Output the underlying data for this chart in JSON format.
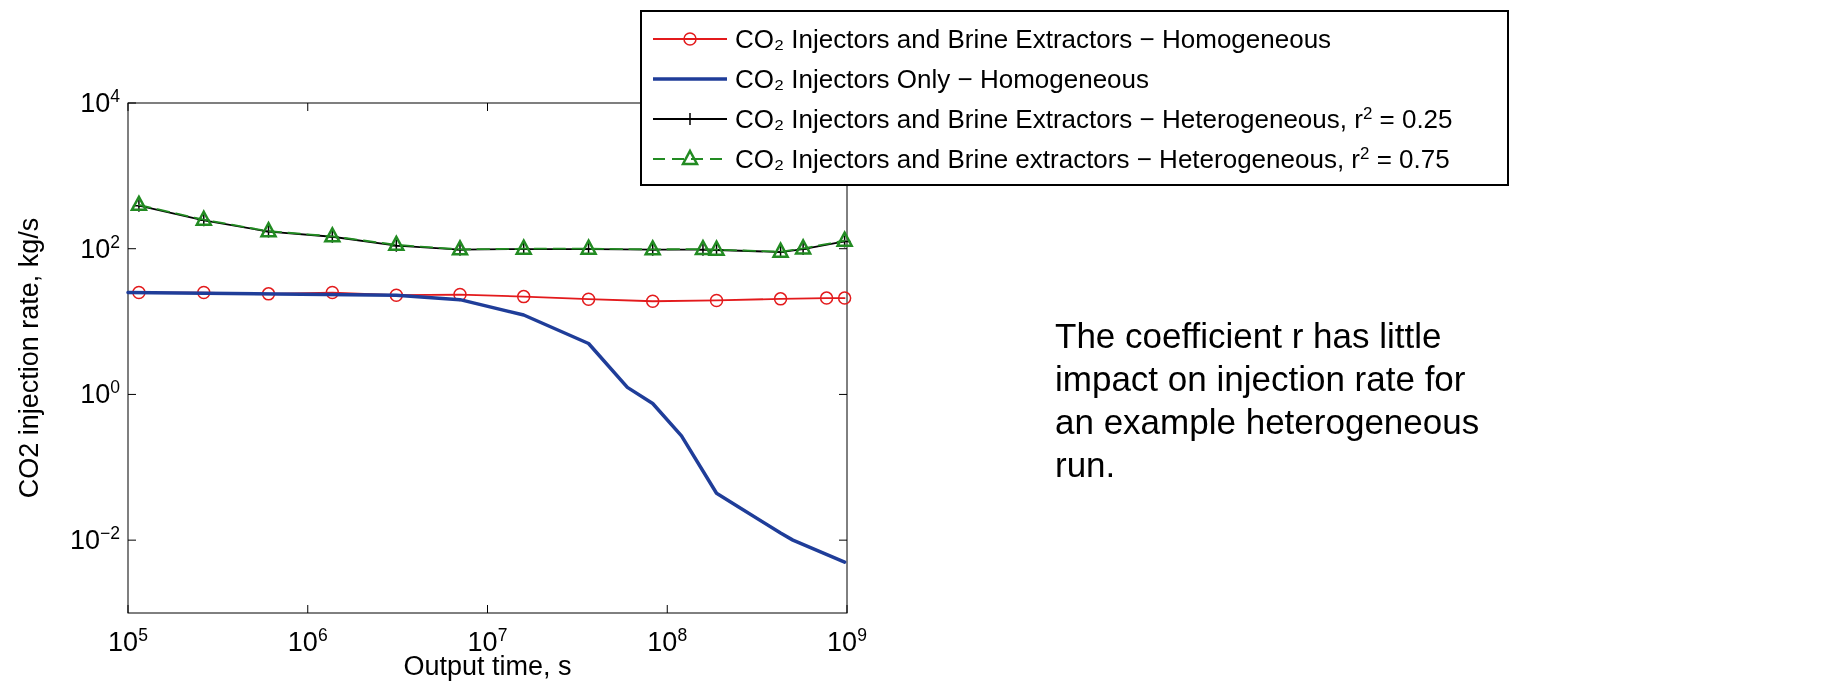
{
  "chart_data": {
    "type": "line",
    "xlabel": "Output time, s",
    "ylabel": "CO2 injection rate, kg/s",
    "log": "xy",
    "xlim": [
      100000,
      1000000000
    ],
    "ylim": [
      0.001,
      10000
    ],
    "xticks": [
      {
        "value": 100000,
        "label": "10$^{5}$"
      },
      {
        "value": 1000000,
        "label": "10$^{6}$"
      },
      {
        "value": 10000000,
        "label": "10$^{7}$"
      },
      {
        "value": 100000000,
        "label": "10$^{8}$"
      },
      {
        "value": 1000000000,
        "label": "10$^{9}$"
      }
    ],
    "yticks": [
      {
        "value": 0.01,
        "label": "10$^{−2}$"
      },
      {
        "value": 1,
        "label": "10$^{0}$"
      },
      {
        "value": 100,
        "label": "10$^{2}$"
      },
      {
        "value": 10000,
        "label": "10$^{4}$"
      }
    ],
    "grid": false,
    "legend": "top right",
    "series": [
      {
        "name": "CO₂ Injectors and Brine Extractors − Homogeneous",
        "color": "#e31a1c",
        "marker": "circle",
        "line_style": "solid",
        "x": [
          115000,
          264000,
          605000,
          1370000,
          3110000,
          7030000,
          15900000,
          36500000,
          83000000,
          188000000,
          427000000,
          770000000,
          970000000
        ],
        "values": [
          25,
          25,
          24,
          25,
          23,
          23.5,
          22,
          20.3,
          19,
          19.5,
          20.5,
          21,
          21
        ]
      },
      {
        "name": "CO₂ Injectors Only − Homogeneous",
        "color": "#1f3d99",
        "marker": "none",
        "line_style": "solid",
        "x": [
          100000,
          3110000,
          7030000,
          15900000,
          36500000,
          60000000,
          83000000,
          120000000,
          188000000,
          427000000,
          500000000,
          970000000
        ],
        "values": [
          25,
          23,
          20,
          12.3,
          5,
          1.25,
          0.75,
          0.27,
          0.044,
          0.0125,
          0.01,
          0.005
        ]
      },
      {
        "name": "CO₂ Injectors and Brine Extractors − Heterogeneous, r$^{2}$ = 0.25",
        "color": "#000000",
        "marker": "cross",
        "line_style": "solid",
        "x": [
          115000,
          264000,
          605000,
          1370000,
          3110000,
          7030000,
          15900000,
          36500000,
          83000000,
          158000000,
          188000000,
          427000000,
          570000000,
          970000000
        ],
        "values": [
          390,
          245,
          172,
          146,
          110,
          97,
          99,
          99,
          97,
          97,
          96,
          90,
          99,
          126
        ]
      },
      {
        "name": "CO₂ Injectors and Brine extractors − Heterogeneous, r$^{2}$ = 0.75",
        "color": "#228b22",
        "marker": "triangle",
        "line_style": "dashed",
        "x": [
          115000,
          264000,
          605000,
          1370000,
          3110000,
          7030000,
          15900000,
          36500000,
          83000000,
          158000000,
          188000000,
          427000000,
          570000000,
          970000000
        ],
        "values": [
          400,
          250,
          174,
          148,
          113,
          98,
          100,
          100,
          98,
          99,
          97,
          91,
          101,
          129
        ]
      }
    ],
    "annotations": [
      "The coefficient r has little impact on injection rate for an example heterogeneous run."
    ]
  }
}
